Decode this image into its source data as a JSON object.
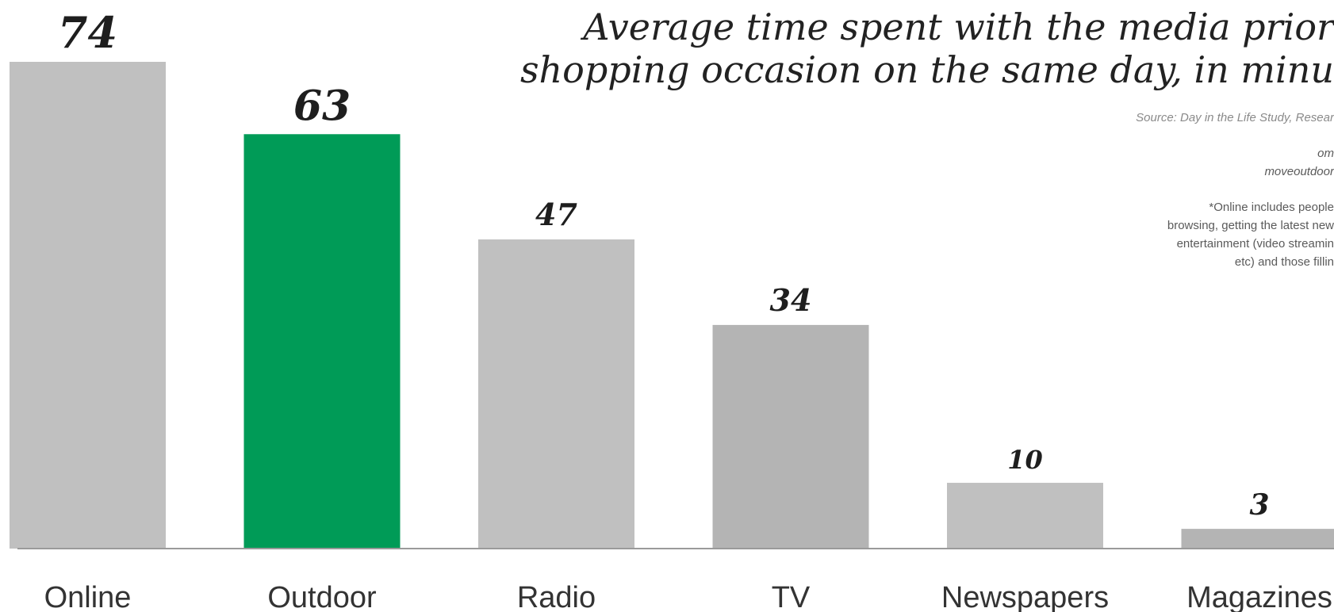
{
  "chart_data": {
    "type": "bar",
    "title_lines": [
      "Average time spent with the media prior",
      "shopping occasion on the same day, in minu"
    ],
    "source": "Source: Day in the Life Study, Resear",
    "notes": [
      "om",
      "moveoutdoor",
      "*Online includes people",
      "browsing, getting the latest new",
      "entertainment  (video streamin",
      "etc) and those fillin"
    ],
    "categories": [
      "Online",
      "Outdoor",
      "Radio",
      "TV",
      "Newspapers",
      "Magazines"
    ],
    "values": [
      74,
      63,
      47,
      34,
      10,
      3
    ],
    "value_labels": [
      "74",
      "63",
      "47",
      "34",
      "10",
      "3"
    ],
    "colors": [
      "#c0c0c0",
      "#009b57",
      "#c0c0c0",
      "#b4b4b4",
      "#c0c0c0",
      "#b4b4b4"
    ],
    "ylim": [
      0,
      74
    ],
    "grid": false,
    "legend": "none"
  }
}
